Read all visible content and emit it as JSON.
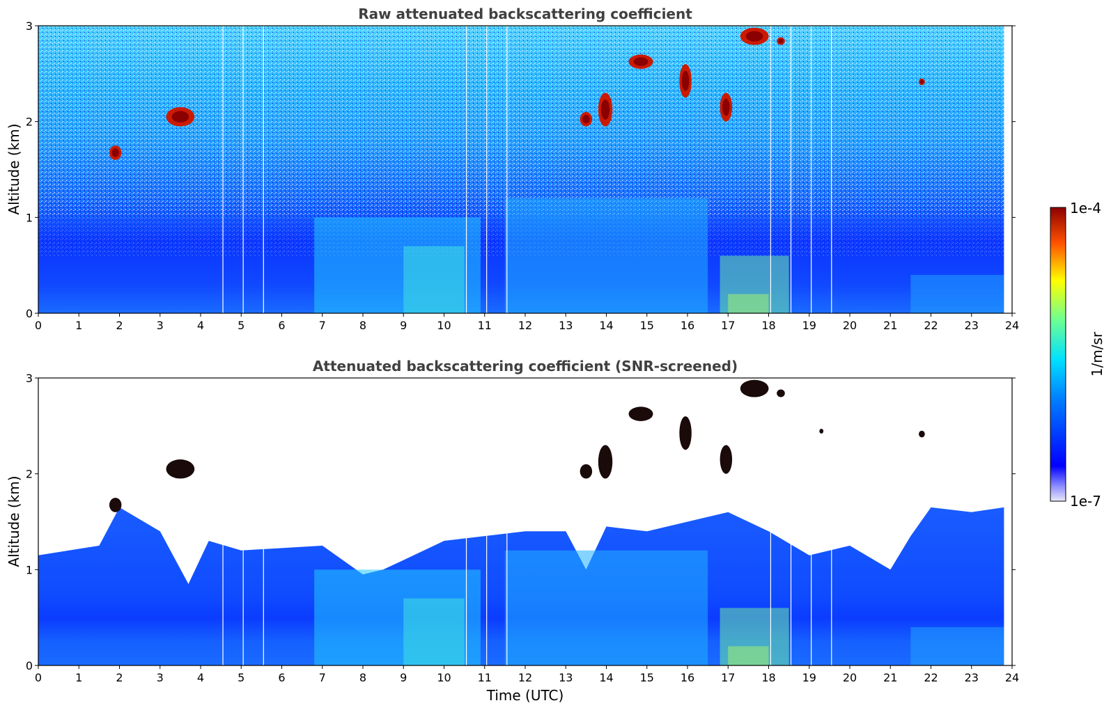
{
  "chart_data": [
    {
      "type": "heatmap",
      "title": "Raw attenuated backscattering coefficient",
      "xlabel": "",
      "ylabel": "Altitude (km)",
      "xlim": [
        0,
        24
      ],
      "ylim": [
        0,
        3
      ],
      "xticks": [
        0,
        1,
        2,
        3,
        4,
        5,
        6,
        7,
        8,
        9,
        10,
        11,
        12,
        13,
        14,
        15,
        16,
        17,
        18,
        19,
        20,
        21,
        22,
        23,
        24
      ],
      "yticks": [
        0,
        1,
        2,
        3
      ],
      "data_end_time": 23.8,
      "screened": false,
      "gap_times": [
        4.55,
        5.05,
        5.55,
        10.55,
        11.05,
        11.55,
        18.05,
        18.55,
        19.05,
        19.55
      ],
      "cloud_features": [
        {
          "time": [
            1.75,
            2.05
          ],
          "altitude": [
            1.6,
            1.75
          ]
        },
        {
          "time": [
            3.15,
            3.85
          ],
          "altitude": [
            1.95,
            2.15
          ]
        },
        {
          "time": [
            13.35,
            13.65
          ],
          "altitude": [
            1.95,
            2.1
          ]
        },
        {
          "time": [
            13.8,
            14.15
          ],
          "altitude": [
            1.95,
            2.3
          ]
        },
        {
          "time": [
            14.55,
            15.15
          ],
          "altitude": [
            2.55,
            2.7
          ]
        },
        {
          "time": [
            15.8,
            16.1
          ],
          "altitude": [
            2.25,
            2.6
          ]
        },
        {
          "time": [
            16.8,
            17.1
          ],
          "altitude": [
            2.0,
            2.3
          ]
        },
        {
          "time": [
            17.3,
            18.0
          ],
          "altitude": [
            2.8,
            2.98
          ]
        },
        {
          "time": [
            18.2,
            18.4
          ],
          "altitude": [
            2.8,
            2.88
          ]
        },
        {
          "time": [
            21.7,
            21.85
          ],
          "altitude": [
            2.38,
            2.45
          ]
        }
      ]
    },
    {
      "type": "heatmap",
      "title": "Attenuated backscattering coefficient (SNR-screened)",
      "xlabel": "Time (UTC)",
      "ylabel": "Altitude (km)",
      "xlim": [
        0,
        24
      ],
      "ylim": [
        0,
        3
      ],
      "xticks": [
        0,
        1,
        2,
        3,
        4,
        5,
        6,
        7,
        8,
        9,
        10,
        11,
        12,
        13,
        14,
        15,
        16,
        17,
        18,
        19,
        20,
        21,
        22,
        23,
        24
      ],
      "yticks": [
        0,
        1,
        2,
        3
      ],
      "data_end_time": 23.8,
      "screened": true,
      "gap_times": [
        4.55,
        5.05,
        5.55,
        10.55,
        11.05,
        11.55,
        18.05,
        18.55,
        19.05,
        19.55
      ],
      "signal_top_km": [
        [
          0,
          1.15
        ],
        [
          1.5,
          1.25
        ],
        [
          2,
          1.65
        ],
        [
          3,
          1.4
        ],
        [
          3.7,
          0.85
        ],
        [
          4.2,
          1.3
        ],
        [
          5,
          1.2
        ],
        [
          7,
          1.25
        ],
        [
          8,
          0.95
        ],
        [
          8.5,
          1.0
        ],
        [
          9,
          1.1
        ],
        [
          10,
          1.3
        ],
        [
          12,
          1.4
        ],
        [
          13,
          1.4
        ],
        [
          13.5,
          1.0
        ],
        [
          14,
          1.45
        ],
        [
          15,
          1.4
        ],
        [
          16,
          1.5
        ],
        [
          17,
          1.6
        ],
        [
          18,
          1.4
        ],
        [
          19,
          1.15
        ],
        [
          20,
          1.25
        ],
        [
          21,
          1.0
        ],
        [
          21.5,
          1.35
        ],
        [
          22,
          1.65
        ],
        [
          23,
          1.6
        ],
        [
          23.8,
          1.65
        ]
      ],
      "cloud_features": [
        {
          "time": [
            1.75,
            2.05
          ],
          "altitude": [
            1.6,
            1.75
          ]
        },
        {
          "time": [
            3.15,
            3.85
          ],
          "altitude": [
            1.95,
            2.15
          ]
        },
        {
          "time": [
            13.35,
            13.65
          ],
          "altitude": [
            1.95,
            2.1
          ]
        },
        {
          "time": [
            13.8,
            14.15
          ],
          "altitude": [
            1.95,
            2.3
          ]
        },
        {
          "time": [
            14.55,
            15.15
          ],
          "altitude": [
            2.55,
            2.7
          ]
        },
        {
          "time": [
            15.8,
            16.1
          ],
          "altitude": [
            2.25,
            2.6
          ]
        },
        {
          "time": [
            16.8,
            17.1
          ],
          "altitude": [
            2.0,
            2.3
          ]
        },
        {
          "time": [
            17.3,
            18.0
          ],
          "altitude": [
            2.8,
            2.98
          ]
        },
        {
          "time": [
            18.2,
            18.4
          ],
          "altitude": [
            2.8,
            2.88
          ]
        },
        {
          "time": [
            19.25,
            19.35
          ],
          "altitude": [
            2.42,
            2.47
          ]
        },
        {
          "time": [
            21.7,
            21.85
          ],
          "altitude": [
            2.38,
            2.45
          ]
        }
      ]
    }
  ],
  "colorbar": {
    "label": "1/m/sr",
    "max_label": "1e-4",
    "min_label": "1e-7",
    "colormap": "jet",
    "scale": "log"
  }
}
